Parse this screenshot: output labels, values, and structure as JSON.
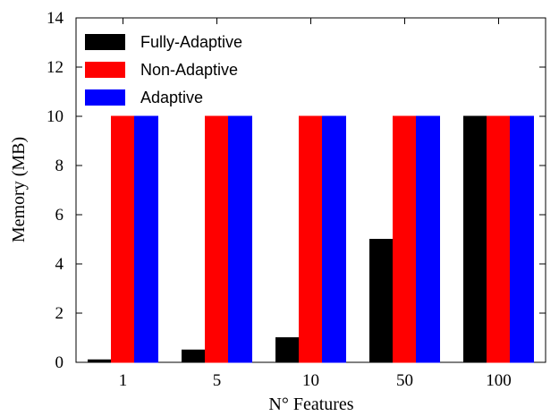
{
  "chart_data": {
    "type": "bar",
    "title": "",
    "xlabel": "N° Features",
    "ylabel": "Memory (MB)",
    "categories": [
      "1",
      "5",
      "10",
      "50",
      "100"
    ],
    "ylim": [
      0,
      14
    ],
    "yticks": [
      "0",
      "2",
      "4",
      "6",
      "8",
      "10",
      "12",
      "14"
    ],
    "grid": false,
    "legend_position": "top-left",
    "series": [
      {
        "name": "Fully-Adaptive",
        "color": "#000000",
        "values": [
          0.1,
          0.5,
          1,
          5,
          10
        ]
      },
      {
        "name": "Non-Adaptive",
        "color": "#ff0000",
        "values": [
          10,
          10,
          10,
          10,
          10
        ]
      },
      {
        "name": "Adaptive",
        "color": "#0000ff",
        "values": [
          10,
          10,
          10,
          10,
          10
        ]
      }
    ]
  }
}
